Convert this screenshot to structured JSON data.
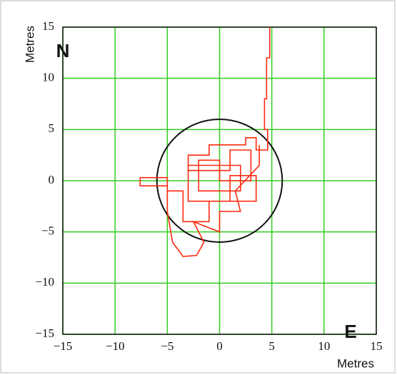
{
  "chart_data": {
    "type": "line",
    "x_label": "Metres",
    "y_label": "Metres",
    "north_label": "N",
    "east_label": "E",
    "x": [
      4.8,
      4.8,
      4.5,
      4.5,
      4.3,
      4.3,
      4.6,
      4.6,
      3.5,
      3.5,
      2.5,
      2.5,
      -1,
      -1,
      -3,
      -3,
      1,
      1,
      3,
      3,
      0,
      0,
      -2,
      -2,
      2,
      2,
      -3,
      -3,
      1,
      1,
      3.5,
      3.5,
      -1,
      -1,
      -3.5,
      -3.5,
      -5,
      -5,
      -7.6,
      -7.6,
      -5,
      -5,
      -4.5,
      -3.5,
      -2.2,
      -1.5,
      -2.5,
      0,
      0,
      2,
      1.5,
      3.8,
      3.8
    ],
    "values": [
      15,
      12,
      12,
      8,
      8,
      5,
      5,
      3,
      3,
      4.2,
      4.2,
      3.5,
      3.5,
      2.5,
      2.5,
      1,
      1,
      3,
      3,
      0,
      0,
      2,
      2,
      -1,
      -1,
      1.5,
      1.5,
      -2,
      -2,
      0.5,
      0.5,
      -2,
      -2,
      -4,
      -4,
      -1,
      -1,
      0.3,
      0.3,
      -0.5,
      -0.5,
      -3,
      -6,
      -7.4,
      -7.3,
      -6,
      -4,
      -5,
      -3,
      -3,
      -1,
      1.5,
      3.5
    ],
    "color": "#ff2a10",
    "reference_circle": {
      "center": [
        0,
        0
      ],
      "radius": 6,
      "color": "#111111"
    },
    "xlim": [
      -15,
      15
    ],
    "ylim": [
      -15,
      15
    ],
    "xticks": [
      {
        "value": -15,
        "label": "−15"
      },
      {
        "value": -10,
        "label": "−10"
      },
      {
        "value": -5,
        "label": "−5"
      },
      0,
      5,
      10,
      15
    ],
    "yticks": [
      {
        "value": -15,
        "label": "−15"
      },
      {
        "value": -10,
        "label": "−10"
      },
      {
        "value": -5,
        "label": "−5"
      },
      0,
      5,
      10,
      15
    ],
    "grid": true,
    "grid_color": "#33cc22"
  }
}
